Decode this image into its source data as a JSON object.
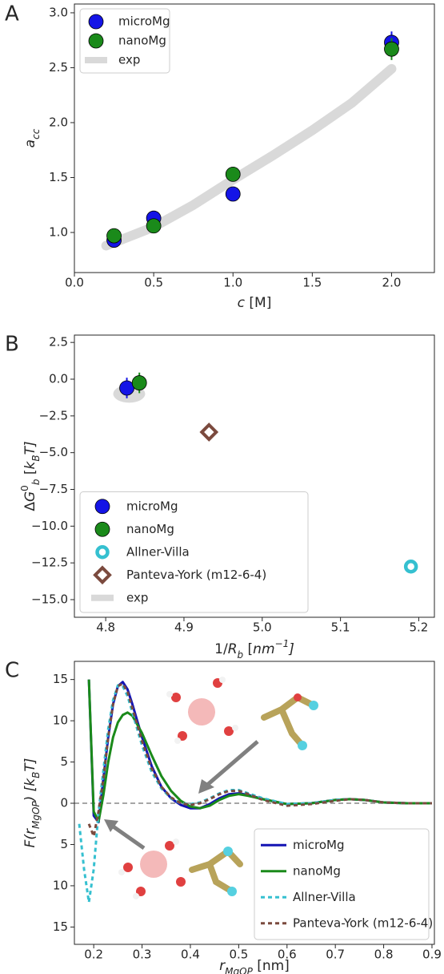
{
  "chart_data": [
    {
      "type": "scatter",
      "panel_label": "A",
      "xlabel": [
        {
          "text": "c",
          "style": "italic"
        },
        {
          "text": " [M]"
        }
      ],
      "ylabel": [
        {
          "text": "a",
          "style": "italic"
        },
        {
          "text": "cc",
          "style": "italic sub"
        }
      ],
      "xlim": [
        0,
        2.27
      ],
      "ylim": [
        0.635,
        3.08
      ],
      "xticks": [
        {
          "value": 0,
          "label": "0.0"
        },
        0.5,
        {
          "value": 1,
          "label": "1.0"
        },
        1.5,
        {
          "value": 2,
          "label": "2.0"
        }
      ],
      "yticks": [
        {
          "value": 1,
          "label": "1.0"
        },
        1.5,
        {
          "value": 2,
          "label": "2.0"
        },
        2.5,
        {
          "value": 3,
          "label": "3.0"
        }
      ],
      "legend": "upper left",
      "series": [
        {
          "name": "microMg",
          "color": "#1414e6",
          "marker": "circle",
          "x": [
            0.25,
            0.5,
            1.0,
            2.0
          ],
          "values": [
            0.93,
            1.13,
            1.35,
            2.73
          ],
          "errors": [
            0.03,
            0.03,
            0.03,
            0.1
          ]
        },
        {
          "name": "nanoMg",
          "color": "#1a8a1a",
          "marker": "circle",
          "x": [
            0.25,
            0.5,
            1.0,
            2.0
          ],
          "values": [
            0.97,
            1.06,
            1.53,
            2.67
          ],
          "errors": [
            0.03,
            0.03,
            0.03,
            0.1
          ]
        },
        {
          "name": "exp",
          "color": "#d9d9d9",
          "marker": "band",
          "x": [
            0.2,
            0.5,
            0.75,
            1.0,
            1.25,
            1.5,
            1.75,
            2.0
          ],
          "values": [
            0.88,
            1.05,
            1.25,
            1.48,
            1.7,
            1.93,
            2.18,
            2.49
          ]
        }
      ]
    },
    {
      "type": "scatter",
      "panel_label": "B",
      "xlabel": [
        {
          "text": "1/"
        },
        {
          "text": "R",
          "style": "italic"
        },
        {
          "text": "b",
          "style": "italic sub"
        },
        {
          "text": " ["
        },
        {
          "text": "nm",
          "style": "italic"
        },
        {
          "text": "−1",
          "style": "italic sup"
        },
        {
          "text": "]",
          "style": "italic"
        }
      ],
      "ylabel": [
        {
          "text": "Δ"
        },
        {
          "text": "G",
          "style": "italic"
        },
        {
          "text": "0",
          "style": "sup"
        },
        {
          "text": "b",
          "style": "italic sub"
        },
        {
          "text": " ["
        },
        {
          "text": "k",
          "style": "italic"
        },
        {
          "text": "B",
          "style": "italic sub"
        },
        {
          "text": "T",
          "style": "italic"
        },
        {
          "text": "]",
          "style": "italic"
        }
      ],
      "xlim": [
        4.76,
        5.22
      ],
      "ylim": [
        -16.2,
        3.0
      ],
      "xticks": [
        4.8,
        4.9,
        {
          "value": 5,
          "label": "5.0"
        },
        5.1,
        5.2
      ],
      "yticks": [
        2.5,
        {
          "value": 0,
          "label": "0.0"
        },
        {
          "value": -2.5,
          "label": "−2.5"
        },
        {
          "value": -5,
          "label": "−5.0"
        },
        {
          "value": -7.5,
          "label": "−7.5"
        },
        {
          "value": -10,
          "label": "−10.0"
        },
        {
          "value": -12.5,
          "label": "−12.5"
        },
        {
          "value": -15,
          "label": "−15.0"
        }
      ],
      "legend": "lower left",
      "series": [
        {
          "name": "microMg",
          "color": "#1414e6",
          "marker": "circle",
          "x": [
            4.827
          ],
          "values": [
            -0.6
          ],
          "errors": [
            0.7
          ]
        },
        {
          "name": "nanoMg",
          "color": "#1a8a1a",
          "marker": "circle",
          "x": [
            4.843
          ],
          "values": [
            -0.25
          ],
          "errors": [
            0.7
          ]
        },
        {
          "name": "Allner-Villa",
          "color": "#35c0d0",
          "marker": "ring",
          "x": [
            5.19
          ],
          "values": [
            -12.75
          ]
        },
        {
          "name": "Panteva-York (m12-6-4)",
          "color": "#7b4a3e",
          "marker": "diamond",
          "x": [
            4.932
          ],
          "values": [
            -3.6
          ]
        },
        {
          "name": "exp",
          "color": "#d9d9d9",
          "marker": "blob",
          "x": [
            4.83
          ],
          "values": [
            -1.0
          ]
        }
      ]
    },
    {
      "type": "line",
      "panel_label": "C",
      "xlabel": [
        {
          "text": "r",
          "style": "italic"
        },
        {
          "text": "MgOP",
          "style": "italic sub"
        },
        {
          "text": " [nm]"
        }
      ],
      "ylabel": [
        {
          "text": "F",
          "style": "italic"
        },
        {
          "text": "(",
          "style": "italic"
        },
        {
          "text": "r",
          "style": "italic"
        },
        {
          "text": "MgOP",
          "style": "italic sub"
        },
        {
          "text": ") [",
          "style": "italic"
        },
        {
          "text": "k",
          "style": "italic"
        },
        {
          "text": "B",
          "style": "italic sub"
        },
        {
          "text": "T",
          "style": "italic"
        },
        {
          "text": "]",
          "style": "italic"
        }
      ],
      "xlim": [
        0.16,
        0.905
      ],
      "ylim": [
        -17.1,
        17.2
      ],
      "xticks": [
        0.2,
        0.3,
        0.4,
        0.5,
        0.6,
        0.7,
        0.8,
        0.9
      ],
      "yticks": [
        15,
        10,
        5,
        0,
        {
          "value": -5,
          "label": "5"
        },
        {
          "value": -10,
          "label": "10"
        },
        {
          "value": -15,
          "label": "15"
        }
      ],
      "hline": 0,
      "legend": "lower right",
      "x": [
        0.17,
        0.18,
        0.19,
        0.2,
        0.21,
        0.22,
        0.23,
        0.24,
        0.25,
        0.26,
        0.27,
        0.28,
        0.3,
        0.32,
        0.34,
        0.36,
        0.38,
        0.4,
        0.42,
        0.44,
        0.46,
        0.48,
        0.5,
        0.52,
        0.55,
        0.6,
        0.65,
        0.7,
        0.73,
        0.76,
        0.8,
        0.85,
        0.9
      ],
      "series": [
        {
          "name": "microMg",
          "color": "#1414b4",
          "dash": false,
          "values": [
            null,
            null,
            15,
            -1.5,
            -2.3,
            3,
            8,
            12,
            14.2,
            14.7,
            13.8,
            12,
            8,
            4.5,
            2,
            0.6,
            -0.2,
            -0.6,
            -0.6,
            -0.1,
            0.6,
            1.1,
            1.2,
            1.0,
            0.5,
            -0.1,
            0,
            0.4,
            0.5,
            0.4,
            0.1,
            0,
            0
          ]
        },
        {
          "name": "nanoMg",
          "color": "#1a8a1a",
          "dash": false,
          "values": [
            null,
            null,
            15,
            -1,
            -2.2,
            1,
            5,
            8,
            9.8,
            10.7,
            11,
            10.6,
            8.5,
            5.8,
            3.3,
            1.5,
            0.3,
            -0.4,
            -0.6,
            -0.3,
            0.4,
            0.9,
            1.1,
            0.9,
            0.5,
            -0.1,
            0,
            0.4,
            0.5,
            0.4,
            0.1,
            0,
            0
          ]
        },
        {
          "name": "Allner-Villa",
          "color": "#35c0d0",
          "dash": true,
          "values": [
            -2.5,
            -8,
            -12,
            -8,
            -1,
            4,
            9,
            12.5,
            14.3,
            14.2,
            13,
            11,
            7,
            3.8,
            1.8,
            0.6,
            0,
            -0.1,
            0.1,
            0.6,
            1.2,
            1.6,
            1.6,
            1.2,
            0.6,
            -0.1,
            0,
            0.4,
            0.5,
            0.4,
            0.1,
            0,
            0
          ]
        },
        {
          "name": "Panteva-York (m12-6-4)",
          "color": "#7b4a3e",
          "dash": true,
          "values": [
            null,
            null,
            -2.5,
            -4,
            -1,
            3,
            8,
            12,
            14.2,
            14.5,
            13.5,
            11.5,
            7.5,
            4.2,
            2,
            0.7,
            0,
            -0.2,
            0,
            0.5,
            1.1,
            1.5,
            1.5,
            1.1,
            0.4,
            -0.3,
            -0.1,
            0.3,
            0.5,
            0.4,
            0.1,
            0,
            0
          ]
        }
      ]
    }
  ]
}
